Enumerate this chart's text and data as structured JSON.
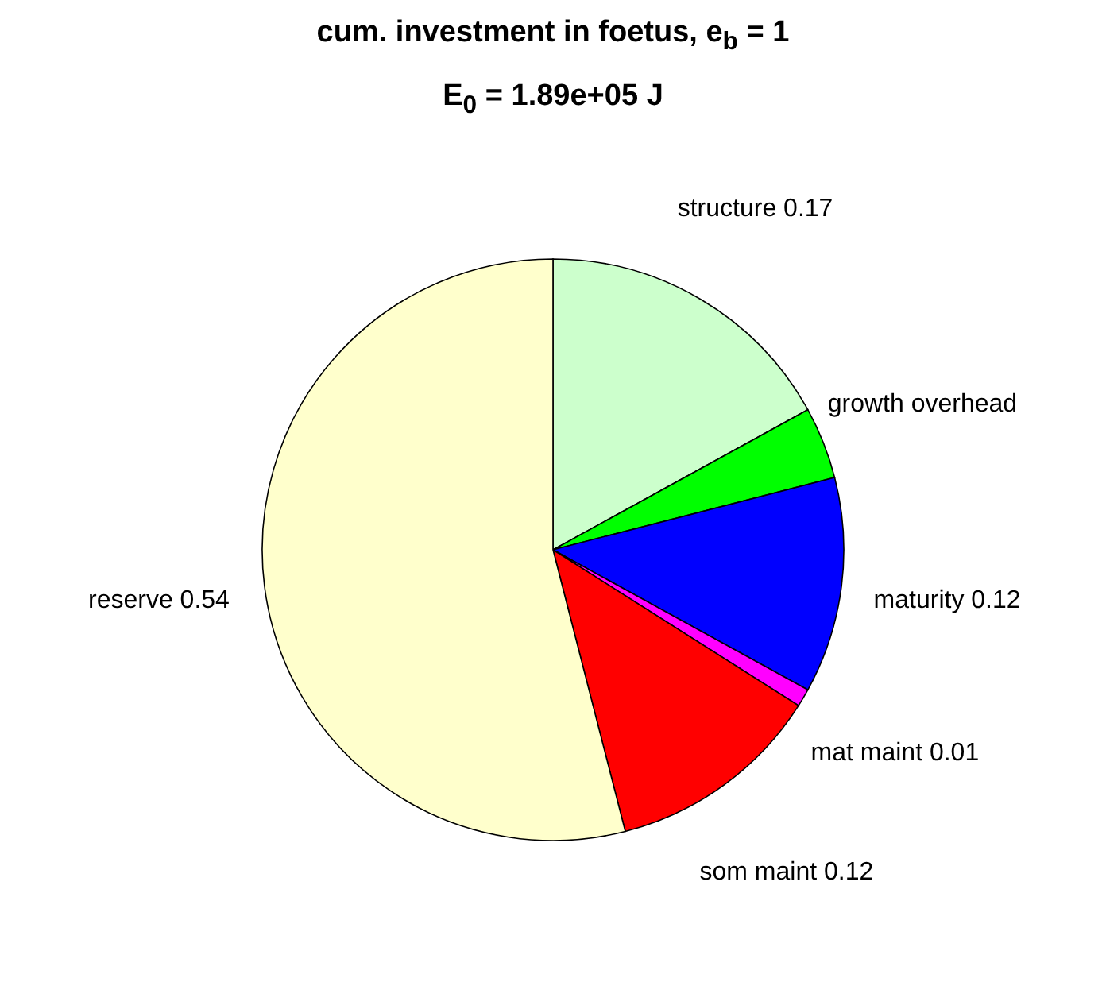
{
  "chart_data": {
    "type": "pie",
    "title": "cum. investment in foetus, e$_{b}$ = 1",
    "subtitle": "E$_{0}$ = 1.89e+05 J",
    "categories": [
      "structure",
      "growth overhead",
      "maturity",
      "mat maint",
      "som maint",
      "reserve"
    ],
    "values": [
      0.17,
      0.04,
      0.12,
      0.01,
      0.12,
      0.54
    ],
    "value_labels": [
      "0.17",
      null,
      "0.12",
      "0.01",
      "0.12",
      "0.54"
    ],
    "colors": [
      "#ccffcc",
      "#00ff00",
      "#0000ff",
      "#ff00ff",
      "#ff0000",
      "#ffffcc"
    ]
  }
}
